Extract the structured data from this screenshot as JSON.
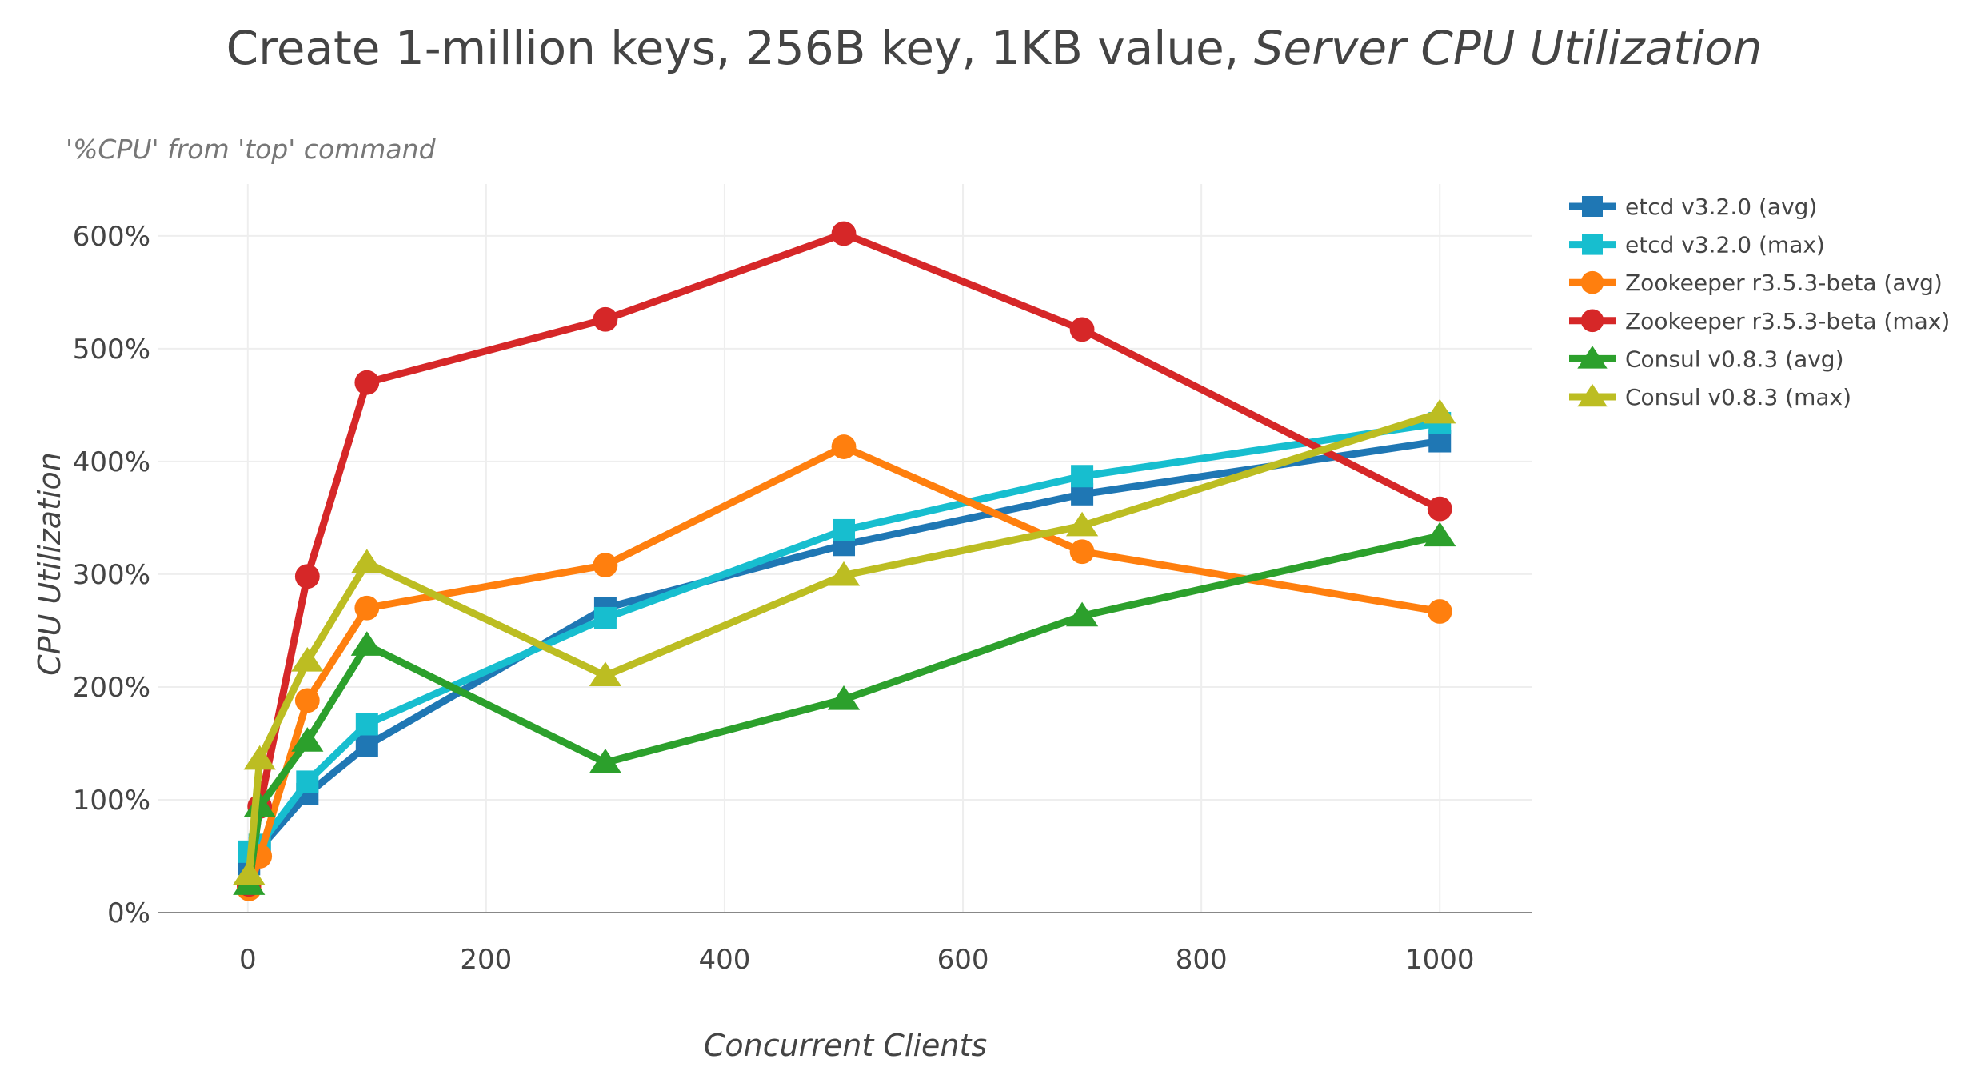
{
  "chart_data": {
    "type": "line",
    "title": "Create 1-million keys, 256B key, 1KB value, ",
    "title_italic": "Server CPU Utilization",
    "annotation": "'%CPU' from 'top' command",
    "xlabel": "Concurrent Clients",
    "ylabel": "CPU Utilization",
    "xlim": [
      -75,
      1077
    ],
    "ylim": [
      0,
      646
    ],
    "xticks": [
      0,
      200,
      400,
      600,
      800,
      1000
    ],
    "xtick_labels": [
      "0",
      "200",
      "400",
      "600",
      "800",
      "1000"
    ],
    "yticks": [
      0,
      100,
      200,
      300,
      400,
      500,
      600
    ],
    "ytick_labels": [
      "0%",
      "100%",
      "200%",
      "300%",
      "400%",
      "500%",
      "600%"
    ],
    "grid": true,
    "legend_placement": "right",
    "x": [
      1,
      10,
      50,
      100,
      300,
      500,
      700,
      1000
    ],
    "series": [
      {
        "name": "etcd v3.2.0 (avg)",
        "color": "#1f77b4",
        "marker": "square",
        "values": [
          43,
          57,
          105,
          148,
          270,
          326,
          371,
          418
        ]
      },
      {
        "name": "etcd v3.2.0 (max)",
        "color": "#17becf",
        "marker": "square",
        "values": [
          54,
          60,
          116,
          167,
          261,
          339,
          387,
          434
        ]
      },
      {
        "name": "Zookeeper r3.5.3-beta (avg)",
        "color": "#ff7f0e",
        "marker": "circle",
        "values": [
          21,
          50,
          188,
          270,
          308,
          413,
          320,
          267
        ]
      },
      {
        "name": "Zookeeper r3.5.3-beta (max)",
        "color": "#d62728",
        "marker": "circle",
        "values": [
          25,
          94,
          298,
          470,
          526,
          602,
          517,
          358
        ]
      },
      {
        "name": "Consul v0.8.3 (avg)",
        "color": "#2ca02c",
        "marker": "triangle-up",
        "values": [
          25,
          94,
          152,
          237,
          133,
          189,
          263,
          334
        ]
      },
      {
        "name": "Consul v0.8.3 (max)",
        "color": "#bcbd22",
        "marker": "triangle-up",
        "values": [
          34,
          136,
          223,
          310,
          210,
          299,
          343,
          443
        ]
      }
    ]
  }
}
